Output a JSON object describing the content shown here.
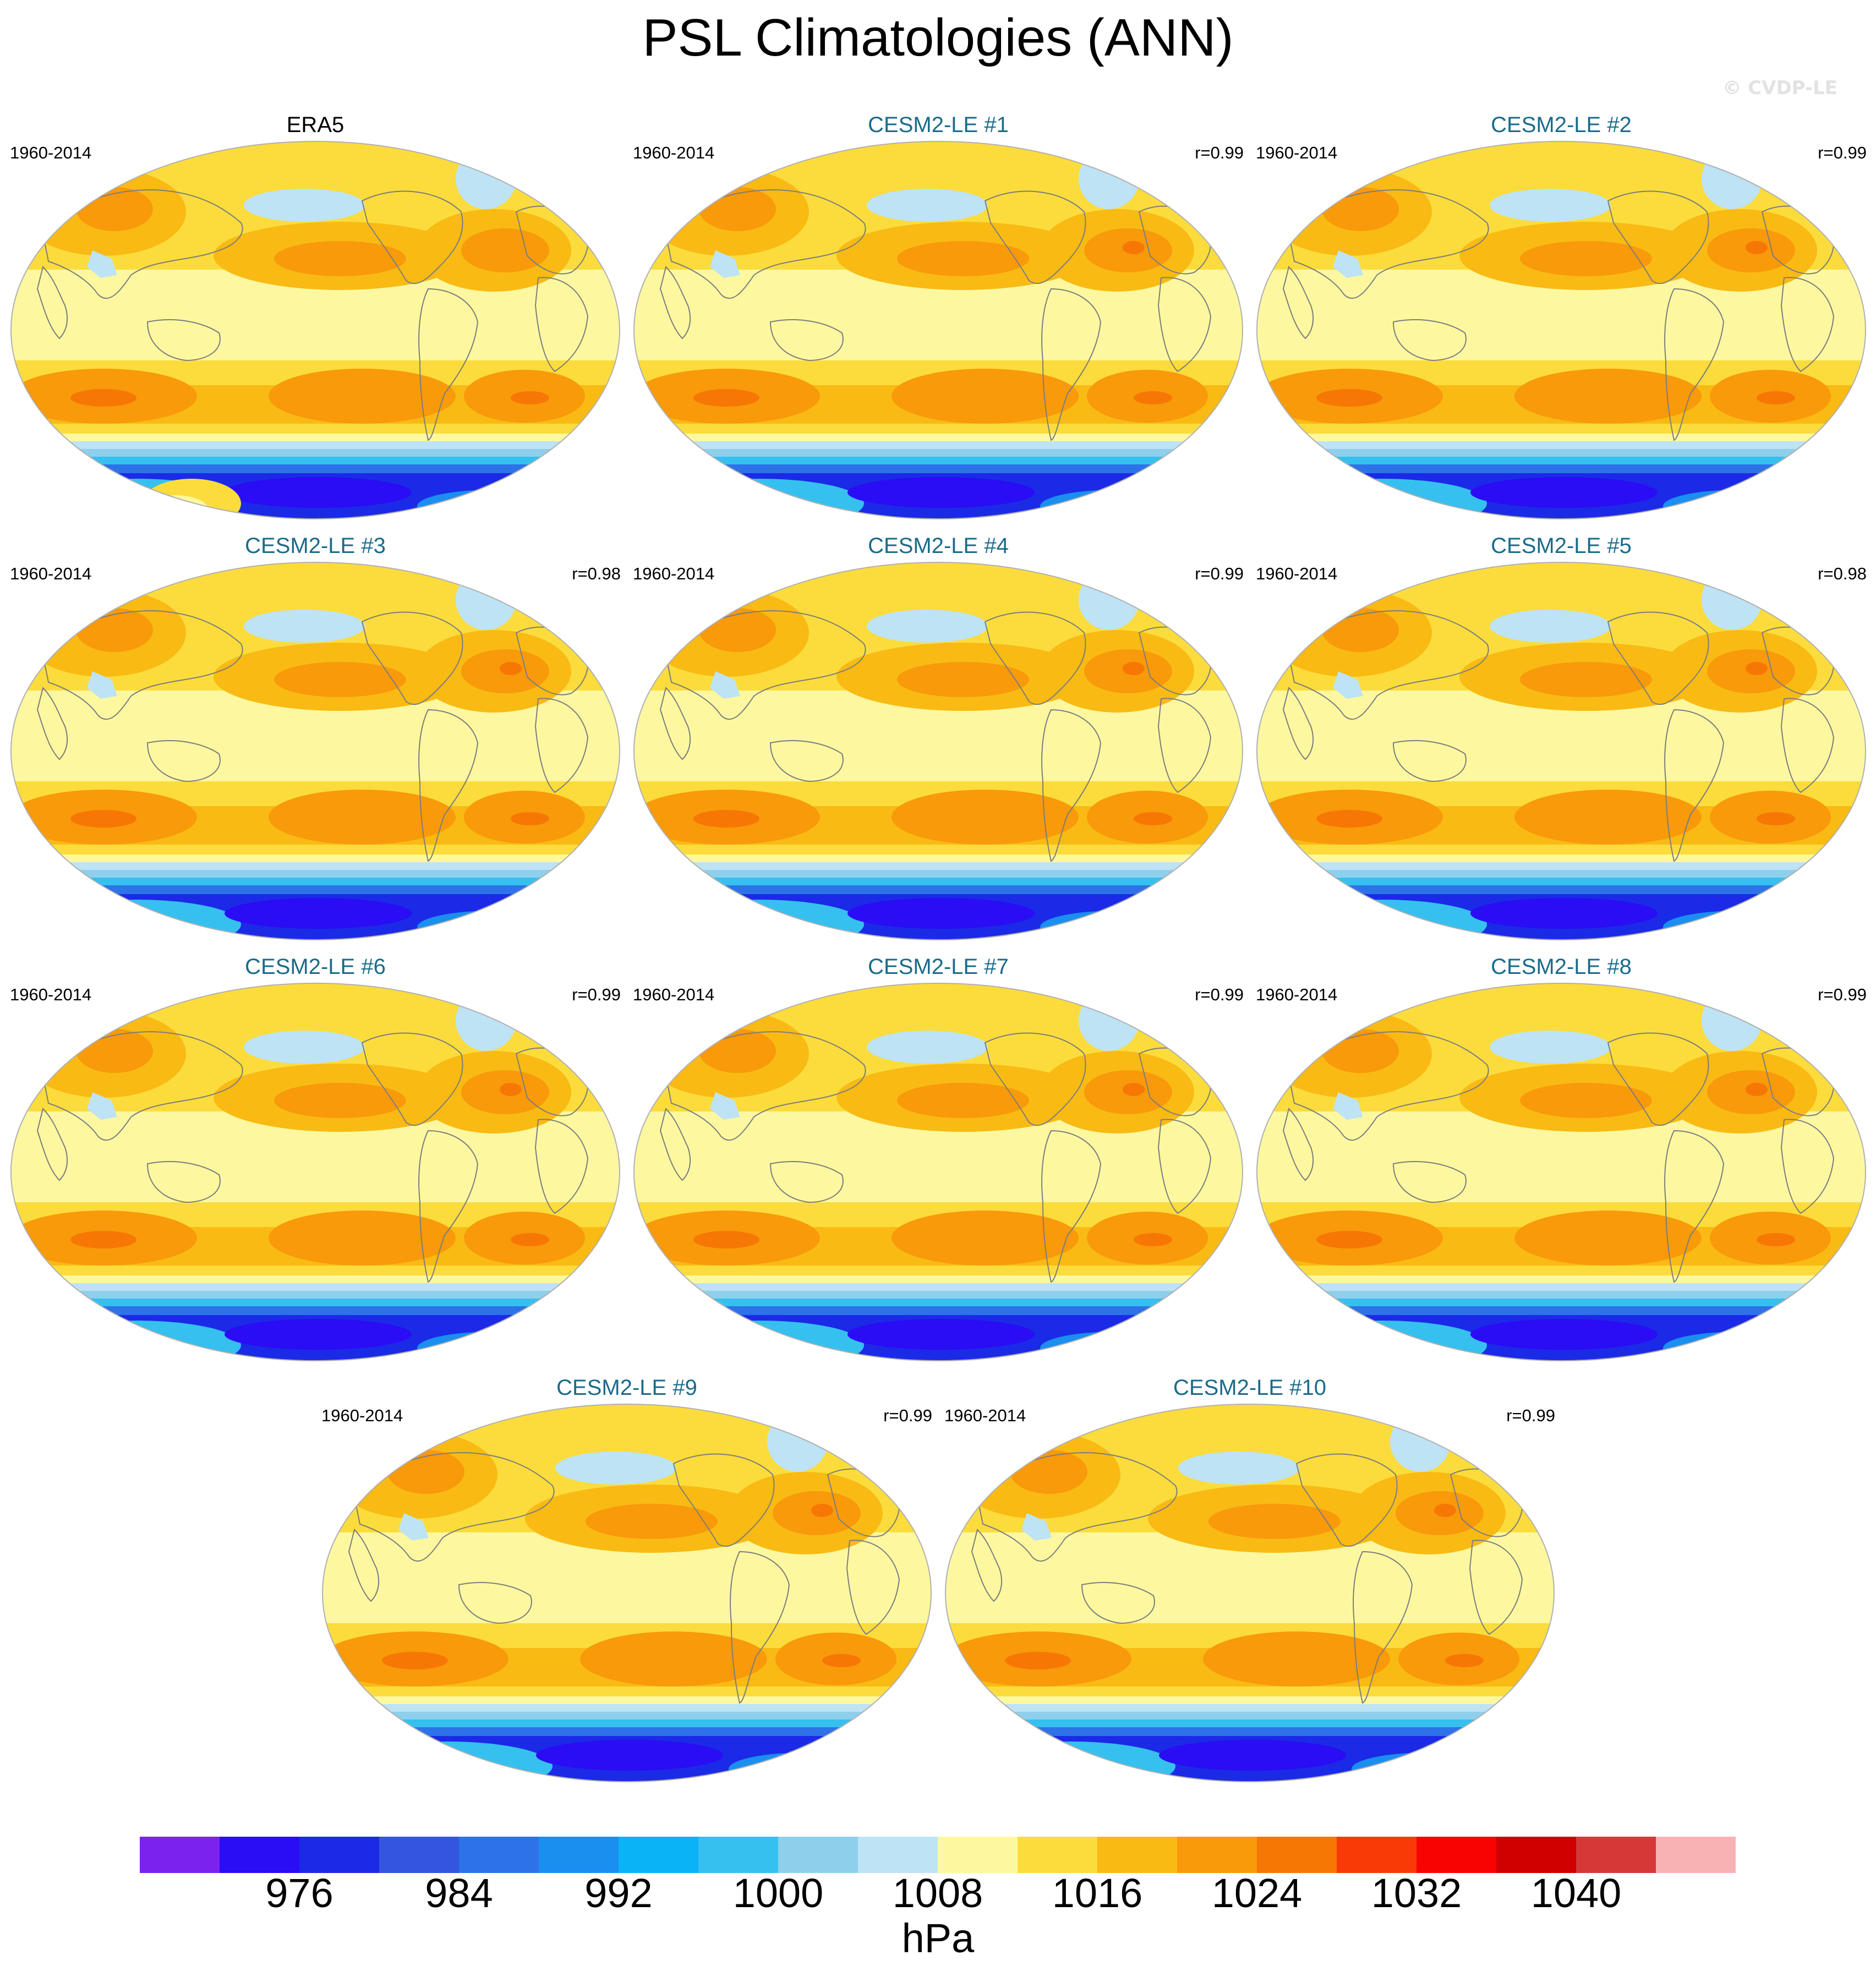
{
  "title": "PSL Climatologies (ANN)",
  "watermark": "© CVDP-LE",
  "panels": [
    {
      "title": "ERA5",
      "period": "1960-2014",
      "corr": ""
    },
    {
      "title": "CESM2-LE #1",
      "period": "1960-2014",
      "corr": "r=0.99"
    },
    {
      "title": "CESM2-LE #2",
      "period": "1960-2014",
      "corr": "r=0.99"
    },
    {
      "title": "CESM2-LE #3",
      "period": "1960-2014",
      "corr": "r=0.98"
    },
    {
      "title": "CESM2-LE #4",
      "period": "1960-2014",
      "corr": "r=0.99"
    },
    {
      "title": "CESM2-LE #5",
      "period": "1960-2014",
      "corr": "r=0.98"
    },
    {
      "title": "CESM2-LE #6",
      "period": "1960-2014",
      "corr": "r=0.99"
    },
    {
      "title": "CESM2-LE #7",
      "period": "1960-2014",
      "corr": "r=0.99"
    },
    {
      "title": "CESM2-LE #8",
      "period": "1960-2014",
      "corr": "r=0.99"
    },
    {
      "title": "CESM2-LE #9",
      "period": "1960-2014",
      "corr": "r=0.99"
    },
    {
      "title": "CESM2-LE #10",
      "period": "1960-2014",
      "corr": "r=0.99"
    }
  ],
  "colorbar": {
    "colors": [
      "#7b22ee",
      "#2a0cf5",
      "#1b2ae6",
      "#3355e0",
      "#2d72e8",
      "#1a8ff0",
      "#09b3f5",
      "#36c0ef",
      "#8ecfec",
      "#bde3f5",
      "#fdf8a0",
      "#fbdc3c",
      "#f9ba14",
      "#f89a0a",
      "#f77705",
      "#f93a06",
      "#f90202",
      "#d10000",
      "#d63838",
      "#f9b2b4"
    ],
    "tick_labels": [
      "976",
      "984",
      "992",
      "1000",
      "1008",
      "1016",
      "1024",
      "1032",
      "1040"
    ],
    "units": "hPa"
  }
}
